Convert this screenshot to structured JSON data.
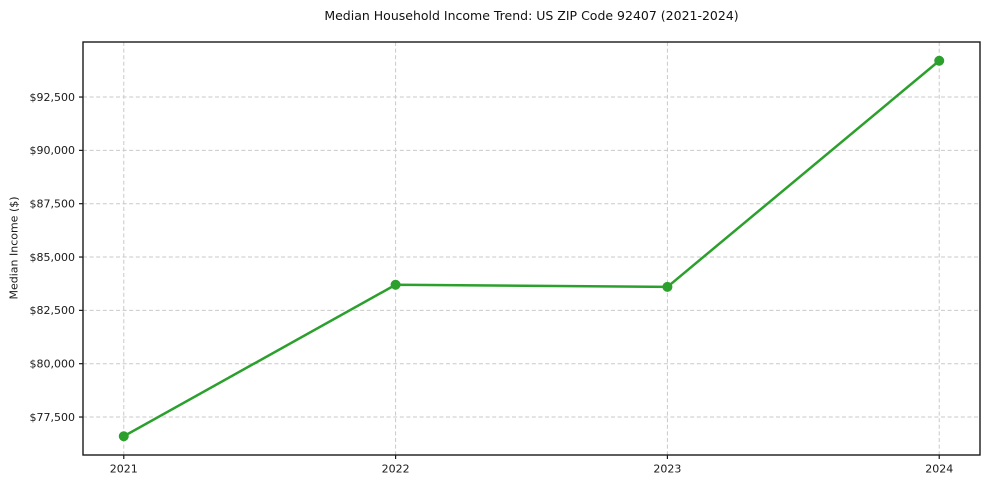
{
  "chart_data": {
    "type": "line",
    "title": "Median Household Income Trend: US ZIP Code 92407 (2021-2024)",
    "ylabel": "Median Income ($)",
    "xlabel": "",
    "x": [
      2021,
      2022,
      2023,
      2024
    ],
    "xtick_labels": [
      "2021",
      "2022",
      "2023",
      "2024"
    ],
    "series": [
      {
        "name": "Median household income",
        "values": [
          76600,
          83700,
          83600,
          94200
        ],
        "color": "#2ca02c",
        "marker": "circle"
      }
    ],
    "yticks": [
      77500,
      80000,
      82500,
      85000,
      87500,
      90000,
      92500
    ],
    "ytick_labels": [
      "$77,500",
      "$80,000",
      "$82,500",
      "$85,000",
      "$87,500",
      "$90,000",
      "$92,500"
    ],
    "ylim": [
      75720,
      95080
    ],
    "xlim": [
      2020.85,
      2024.15
    ],
    "grid": true,
    "legend": false,
    "colors": {
      "line": "#2ca02c",
      "grid": "#c9c9c9",
      "axis": "#1a1a1a",
      "text": "#1a1a1a",
      "background": "#ffffff"
    }
  }
}
